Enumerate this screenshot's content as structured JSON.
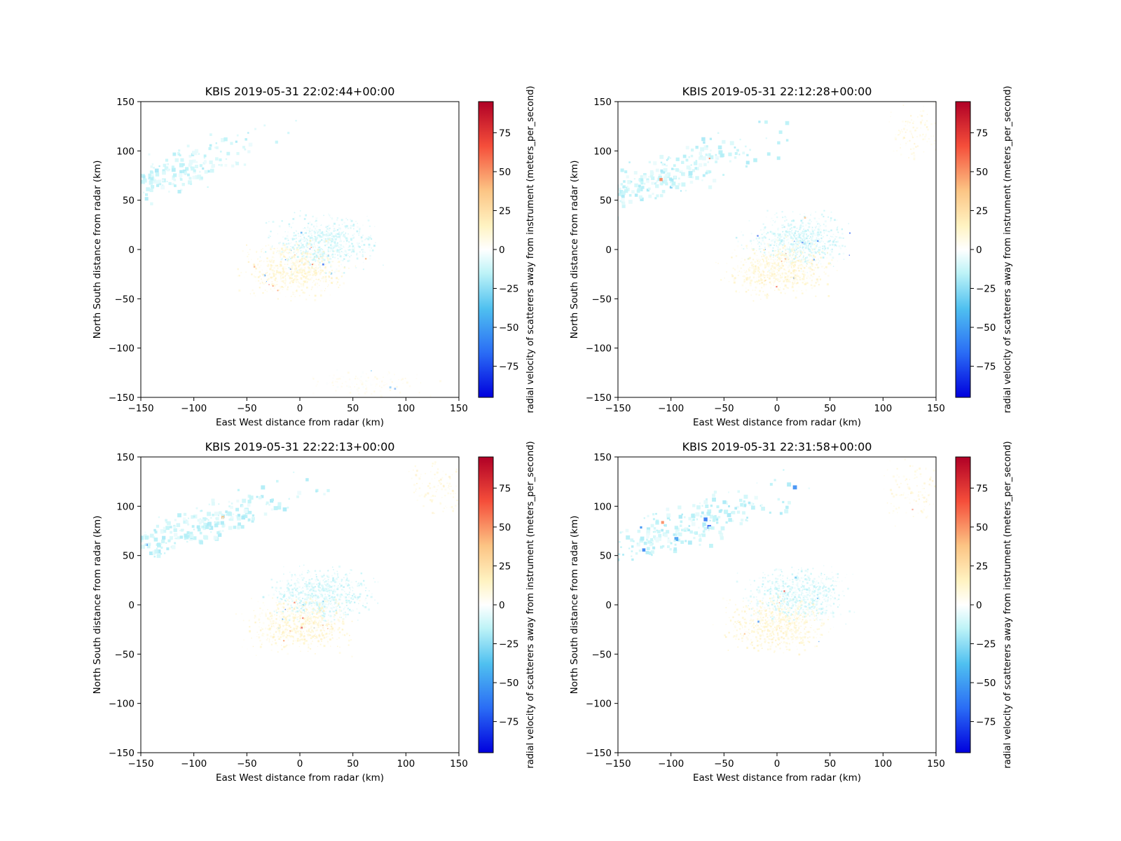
{
  "chart_data": [
    {
      "type": "heatmap",
      "title": "KBIS 2019-05-31 22:02:44+00:00",
      "xlabel": "East West distance from radar (km)",
      "ylabel": "North South distance from radar (km)",
      "xlim": [
        -150,
        150
      ],
      "ylim": [
        -150,
        150
      ],
      "xticks": [
        -150,
        -100,
        -50,
        0,
        50,
        100,
        150
      ],
      "yticks": [
        -150,
        -100,
        -50,
        0,
        50,
        100,
        150
      ],
      "colorbar": {
        "label": "radial velocity of scatterers away from instrument (meters_per_second)",
        "range": [
          -95,
          95
        ],
        "ticks": [
          -75,
          -50,
          -25,
          0,
          25,
          50,
          75
        ],
        "colormap": "jet-like (blue-cyan-white-yellow-red)"
      },
      "regions": [
        {
          "description": "band",
          "x": -135,
          "y": 73,
          "velocity": -12
        },
        {
          "description": "center",
          "x": 20,
          "y": 8,
          "velocity": -10
        },
        {
          "description": "center-south",
          "x": -5,
          "y": -20,
          "velocity": 10
        },
        {
          "description": "south",
          "x": 60,
          "y": -135,
          "velocity": 5
        }
      ]
    },
    {
      "type": "heatmap",
      "title": "KBIS 2019-05-31 22:12:28+00:00",
      "xlabel": "East West distance from radar (km)",
      "ylabel": "North South distance from radar (km)",
      "xlim": [
        -150,
        150
      ],
      "ylim": [
        -150,
        150
      ],
      "xticks": [
        -150,
        -100,
        -50,
        0,
        50,
        100,
        150
      ],
      "yticks": [
        -150,
        -100,
        -50,
        0,
        50,
        100,
        150
      ],
      "colorbar": {
        "label": "radial velocity of scatterers away from instrument (meters_per_second)",
        "range": [
          -95,
          95
        ],
        "ticks": [
          -75,
          -50,
          -25,
          0,
          25,
          50,
          75
        ],
        "colormap": "jet-like (blue-cyan-white-yellow-red)"
      },
      "regions": [
        {
          "description": "band",
          "x": -110,
          "y": 75,
          "velocity": -12
        },
        {
          "description": "center",
          "x": 20,
          "y": 10,
          "velocity": -10
        },
        {
          "description": "center-south",
          "x": 0,
          "y": -20,
          "velocity": 10
        },
        {
          "description": "northeast",
          "x": 130,
          "y": 120,
          "velocity": 12
        }
      ]
    },
    {
      "type": "heatmap",
      "title": "KBIS 2019-05-31 22:22:13+00:00",
      "xlabel": "East West distance from radar (km)",
      "ylabel": "North South distance from radar (km)",
      "xlim": [
        -150,
        150
      ],
      "ylim": [
        -150,
        150
      ],
      "xticks": [
        -150,
        -100,
        -50,
        0,
        50,
        100,
        150
      ],
      "yticks": [
        -150,
        -100,
        -50,
        0,
        50,
        100,
        150
      ],
      "colorbar": {
        "label": "radial velocity of scatterers away from instrument (meters_per_second)",
        "range": [
          -95,
          95
        ],
        "ticks": [
          -75,
          -50,
          -25,
          0,
          25,
          50,
          75
        ],
        "colormap": "jet-like (blue-cyan-white-yellow-red)"
      },
      "regions": [
        {
          "description": "band",
          "x": -100,
          "y": 80,
          "velocity": -12
        },
        {
          "description": "center",
          "x": 20,
          "y": 10,
          "velocity": -10
        },
        {
          "description": "center-south",
          "x": 0,
          "y": -20,
          "velocity": 10
        },
        {
          "description": "northeast",
          "x": 130,
          "y": 120,
          "velocity": 12
        }
      ]
    },
    {
      "type": "heatmap",
      "title": "KBIS 2019-05-31 22:31:58+00:00",
      "xlabel": "East West distance from radar (km)",
      "ylabel": "North South distance from radar (km)",
      "xlim": [
        -150,
        150
      ],
      "ylim": [
        -150,
        150
      ],
      "xticks": [
        -150,
        -100,
        -50,
        0,
        50,
        100,
        150
      ],
      "yticks": [
        -150,
        -100,
        -50,
        0,
        50,
        100,
        150
      ],
      "colorbar": {
        "label": "radial velocity of scatterers away from instrument (meters_per_second)",
        "range": [
          -95,
          95
        ],
        "ticks": [
          -75,
          -50,
          -25,
          0,
          25,
          50,
          75
        ],
        "colormap": "jet-like (blue-cyan-white-yellow-red)"
      },
      "regions": [
        {
          "description": "band",
          "x": -90,
          "y": 80,
          "velocity": -12
        },
        {
          "description": "center",
          "x": 20,
          "y": 10,
          "velocity": -10
        },
        {
          "description": "center-south",
          "x": 0,
          "y": -20,
          "velocity": 10
        },
        {
          "description": "northeast",
          "x": 125,
          "y": 115,
          "velocity": 12
        }
      ]
    }
  ]
}
